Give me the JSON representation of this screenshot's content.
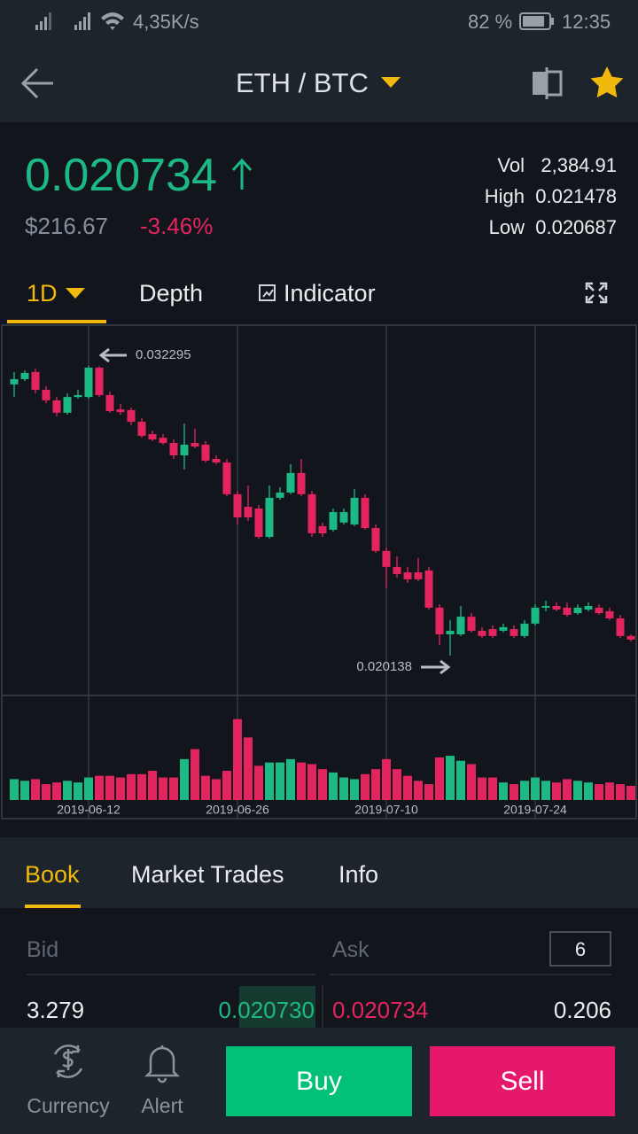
{
  "status_bar": {
    "speed": "4,35K/s",
    "battery": "82 %",
    "time": "12:35"
  },
  "header": {
    "pair": "ETH / BTC"
  },
  "ticker": {
    "price": "0.020734",
    "fiat": "$216.67",
    "change": "-3.46%",
    "vol_label": "Vol",
    "vol": "2,384.91",
    "high_label": "High",
    "high": "0.021478",
    "low_label": "Low",
    "low": "0.020687"
  },
  "tabs": [
    "1D",
    "Depth",
    "Indicator"
  ],
  "chart_data": {
    "type": "candlestick",
    "up_color": "#1db985",
    "down_color": "#e4245f",
    "categories": [
      null,
      null,
      null,
      null,
      null,
      null,
      null,
      "2019-06-12",
      null,
      null,
      null,
      null,
      null,
      null,
      null,
      null,
      null,
      null,
      null,
      null,
      null,
      "2019-06-26",
      null,
      null,
      null,
      null,
      null,
      null,
      null,
      null,
      null,
      null,
      null,
      null,
      null,
      "2019-07-10",
      null,
      null,
      null,
      null,
      null,
      null,
      null,
      null,
      null,
      null,
      null,
      null,
      null,
      "2019-07-24",
      null,
      null,
      null,
      null,
      null,
      null,
      null,
      null,
      null
    ],
    "open": [
      0.03152,
      0.03174,
      0.03204,
      0.03129,
      0.03085,
      0.03033,
      0.03099,
      0.03099,
      0.03222,
      0.03107,
      0.03047,
      0.03044,
      0.02995,
      0.02943,
      0.02928,
      0.02906,
      0.02854,
      0.02906,
      0.02899,
      0.02839,
      0.02824,
      0.02691,
      0.02638,
      0.02631,
      0.02512,
      0.02676,
      0.02698,
      0.0278,
      0.02691,
      0.02557,
      0.02542,
      0.02572,
      0.02564,
      0.02676,
      0.02549,
      0.02453,
      0.02386,
      0.02363,
      0.02363,
      0.02371,
      0.02215,
      0.02103,
      0.02103,
      0.02177,
      0.02118,
      0.02125,
      0.02118,
      0.02125,
      0.02096,
      0.02148,
      0.02215,
      0.02222,
      0.02215,
      0.02192,
      0.02207,
      0.02215,
      0.022,
      0.0217,
      0.02096
    ],
    "high": [
      0.03204,
      0.03211,
      0.03218,
      0.03144,
      0.03099,
      0.03114,
      0.03129,
      0.032295,
      0.03228,
      0.03122,
      0.0307,
      0.03055,
      0.0301,
      0.02958,
      0.02943,
      0.02921,
      0.02988,
      0.02966,
      0.02914,
      0.02854,
      0.02839,
      0.02705,
      0.02728,
      0.02646,
      0.02728,
      0.0272,
      0.02817,
      0.02839,
      0.02705,
      0.02572,
      0.02631,
      0.02631,
      0.02713,
      0.02691,
      0.02564,
      0.02467,
      0.0243,
      0.02386,
      0.02423,
      0.02386,
      0.02229,
      0.02163,
      0.02222,
      0.02192,
      0.02133,
      0.0214,
      0.02148,
      0.0214,
      0.02163,
      0.02229,
      0.02244,
      0.02237,
      0.02237,
      0.02229,
      0.02237,
      0.02229,
      0.02215,
      0.02185,
      0.02103
    ],
    "low": [
      0.03099,
      0.03166,
      0.03114,
      0.03073,
      0.03018,
      0.03025,
      0.03092,
      0.03092,
      0.03099,
      0.03033,
      0.03025,
      0.02981,
      0.02928,
      0.02914,
      0.02899,
      0.02839,
      0.02795,
      0.02884,
      0.02824,
      0.02817,
      0.02683,
      0.02564,
      0.02579,
      0.02505,
      0.02505,
      0.02668,
      0.02691,
      0.02683,
      0.02512,
      0.02512,
      0.02534,
      0.02564,
      0.02557,
      0.02542,
      0.02445,
      0.02296,
      0.02341,
      0.02319,
      0.02326,
      0.02207,
      0.02058,
      0.020138,
      0.02096,
      0.02111,
      0.02088,
      0.02088,
      0.02111,
      0.02088,
      0.02088,
      0.0214,
      0.022,
      0.022,
      0.02177,
      0.02185,
      0.022,
      0.02185,
      0.02163,
      0.02088,
      0.02073
    ],
    "close": [
      0.03174,
      0.032,
      0.03129,
      0.03085,
      0.03033,
      0.03099,
      0.03107,
      0.03222,
      0.03107,
      0.0304,
      0.03036,
      0.02995,
      0.02936,
      0.02921,
      0.02906,
      0.02854,
      0.02899,
      0.02891,
      0.02832,
      0.02824,
      0.02691,
      0.02594,
      0.02594,
      0.02512,
      0.02676,
      0.02698,
      0.0278,
      0.02691,
      0.02527,
      0.02527,
      0.02616,
      0.02616,
      0.02676,
      0.02549,
      0.02453,
      0.02386,
      0.02356,
      0.02334,
      0.02334,
      0.02215,
      0.02103,
      0.02118,
      0.02177,
      0.02118,
      0.02096,
      0.02096,
      0.02133,
      0.02096,
      0.02148,
      0.02215,
      0.02222,
      0.02207,
      0.02185,
      0.02215,
      0.02222,
      0.02192,
      0.0217,
      0.02096,
      0.02081
    ],
    "volume": [
      25,
      23,
      25,
      19,
      21,
      23,
      21,
      27,
      29,
      29,
      27,
      31,
      31,
      35,
      27,
      27,
      49,
      61,
      29,
      25,
      35,
      97,
      75,
      41,
      45,
      45,
      49,
      45,
      43,
      37,
      33,
      27,
      25,
      31,
      37,
      49,
      37,
      29,
      23,
      19,
      51,
      53,
      47,
      43,
      27,
      27,
      21,
      19,
      23,
      27,
      23,
      21,
      25,
      23,
      21,
      19,
      21,
      19,
      17
    ],
    "ylim": [
      0.018465,
      0.033968
    ],
    "volume_lim": [
      0,
      120
    ]
  },
  "book_tabs": [
    "Book",
    "Market Trades",
    "Info"
  ],
  "book": {
    "bid_label": "Bid",
    "ask_label": "Ask",
    "depth": 6,
    "rows": [
      [
        "3.279",
        "0.020730",
        "0.020734",
        "0.206"
      ]
    ]
  },
  "bottom": {
    "currency": "Currency",
    "alert": "Alert",
    "buy": "Buy",
    "sell": "Sell"
  }
}
